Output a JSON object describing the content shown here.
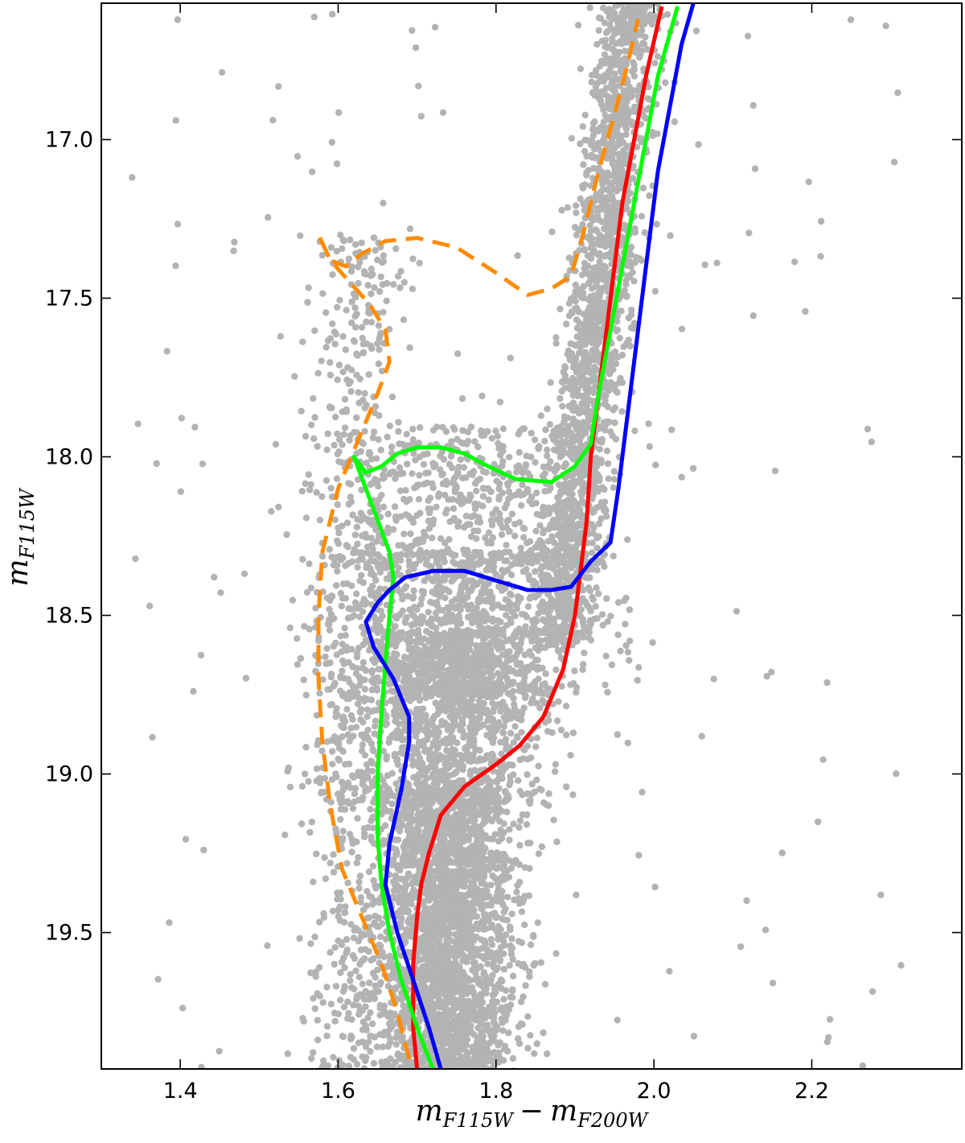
{
  "chart_data": {
    "type": "scatter",
    "xlabel": {
      "main": "m",
      "sub1": "F115W",
      "op": "−",
      "main2": "m",
      "sub2": "F200W"
    },
    "ylabel": {
      "main": "m",
      "sub": "F115W"
    },
    "xlim": [
      1.3,
      2.39
    ],
    "ylim": [
      19.93,
      16.57
    ],
    "y_inverted": true,
    "grid": false,
    "x_ticks": [
      {
        "value": 1.4,
        "label": "1.4"
      },
      {
        "value": 1.6,
        "label": "1.6"
      },
      {
        "value": 1.8,
        "label": "1.8"
      },
      {
        "value": 2.0,
        "label": "2.0"
      },
      {
        "value": 2.2,
        "label": "2.2"
      }
    ],
    "y_ticks": [
      {
        "value": 17.0,
        "label": "17.0"
      },
      {
        "value": 17.5,
        "label": "17.5"
      },
      {
        "value": 18.0,
        "label": "18.0"
      },
      {
        "value": 18.5,
        "label": "18.5"
      },
      {
        "value": 19.0,
        "label": "19.0"
      },
      {
        "value": 19.5,
        "label": "19.5"
      }
    ],
    "points_color": "#b3b3b3",
    "point_groups": [
      {
        "region": "lower-main-sequence",
        "count": 2600,
        "y_range": [
          19.05,
          19.95
        ],
        "color_center": 1.735,
        "color_sigma": 0.045
      },
      {
        "region": "turnoff",
        "count": 1300,
        "y_range": [
          18.55,
          19.1
        ],
        "color_center": 1.74,
        "color_sigma": 0.06
      },
      {
        "region": "subgiant-branch-lower",
        "count": 900,
        "y_range": [
          18.3,
          18.75
        ],
        "color_center": 1.76,
        "color_sigma": 0.08
      },
      {
        "region": "subgiant-branch-upper",
        "count": 500,
        "y_range": [
          17.9,
          18.35
        ],
        "color_center": 1.77,
        "color_sigma": 0.08
      },
      {
        "region": "red-giant-branch",
        "count": 2000,
        "y_range": [
          16.57,
          18.6
        ],
        "color_center": 1.92,
        "color_sigma": 0.02
      },
      {
        "region": "blue-wing",
        "count": 700,
        "y_range": [
          17.3,
          19.95
        ],
        "color_center": 1.62,
        "color_sigma": 0.03
      },
      {
        "region": "field-scatter",
        "count": 160,
        "y_range": [
          16.57,
          19.93
        ],
        "color_center": 1.85,
        "color_sigma": 0.3
      }
    ],
    "series": [
      {
        "color": "#ff8c00",
        "style": "dashed",
        "points": [
          [
            1.69,
            19.9
          ],
          [
            1.675,
            19.75
          ],
          [
            1.655,
            19.6
          ],
          [
            1.63,
            19.45
          ],
          [
            1.605,
            19.3
          ],
          [
            1.59,
            19.1
          ],
          [
            1.58,
            18.9
          ],
          [
            1.575,
            18.7
          ],
          [
            1.575,
            18.5
          ],
          [
            1.58,
            18.3
          ],
          [
            1.6,
            18.1
          ],
          [
            1.625,
            17.95
          ],
          [
            1.65,
            17.8
          ],
          [
            1.665,
            17.7
          ],
          [
            1.66,
            17.6
          ],
          [
            1.64,
            17.52
          ],
          [
            1.615,
            17.45
          ],
          [
            1.59,
            17.38
          ],
          [
            1.575,
            17.3
          ],
          [
            1.59,
            17.38
          ],
          [
            1.61,
            17.4
          ],
          [
            1.63,
            17.36
          ],
          [
            1.66,
            17.32
          ],
          [
            1.7,
            17.31
          ],
          [
            1.75,
            17.34
          ],
          [
            1.8,
            17.42
          ],
          [
            1.84,
            17.49
          ],
          [
            1.87,
            17.47
          ],
          [
            1.895,
            17.43
          ],
          [
            1.91,
            17.3
          ],
          [
            1.93,
            17.1
          ],
          [
            1.95,
            16.92
          ],
          [
            1.965,
            16.78
          ],
          [
            1.98,
            16.62
          ]
        ]
      },
      {
        "color": "#ff0000",
        "style": "solid",
        "points": [
          [
            1.7,
            19.93
          ],
          [
            1.695,
            19.8
          ],
          [
            1.695,
            19.6
          ],
          [
            1.7,
            19.45
          ],
          [
            1.705,
            19.35
          ],
          [
            1.715,
            19.25
          ],
          [
            1.73,
            19.13
          ],
          [
            1.76,
            19.04
          ],
          [
            1.8,
            18.97
          ],
          [
            1.83,
            18.91
          ],
          [
            1.86,
            18.82
          ],
          [
            1.885,
            18.67
          ],
          [
            1.9,
            18.5
          ],
          [
            1.91,
            18.3
          ],
          [
            1.915,
            18.2
          ],
          [
            1.92,
            18.0
          ],
          [
            1.93,
            17.8
          ],
          [
            1.94,
            17.6
          ],
          [
            1.95,
            17.4
          ],
          [
            1.96,
            17.2
          ],
          [
            1.975,
            17.0
          ],
          [
            1.99,
            16.8
          ],
          [
            2.01,
            16.58
          ]
        ]
      },
      {
        "color": "#00ff00",
        "style": "solid",
        "points": [
          [
            1.72,
            19.93
          ],
          [
            1.7,
            19.8
          ],
          [
            1.68,
            19.65
          ],
          [
            1.665,
            19.5
          ],
          [
            1.655,
            19.35
          ],
          [
            1.65,
            19.2
          ],
          [
            1.65,
            19.0
          ],
          [
            1.655,
            18.8
          ],
          [
            1.66,
            18.65
          ],
          [
            1.665,
            18.5
          ],
          [
            1.67,
            18.38
          ],
          [
            1.665,
            18.3
          ],
          [
            1.65,
            18.2
          ],
          [
            1.635,
            18.1
          ],
          [
            1.62,
            18.0
          ],
          [
            1.635,
            18.05
          ],
          [
            1.655,
            18.03
          ],
          [
            1.675,
            17.99
          ],
          [
            1.7,
            17.97
          ],
          [
            1.73,
            17.97
          ],
          [
            1.76,
            17.99
          ],
          [
            1.79,
            18.03
          ],
          [
            1.825,
            18.07
          ],
          [
            1.87,
            18.08
          ],
          [
            1.9,
            18.03
          ],
          [
            1.92,
            17.96
          ],
          [
            1.93,
            17.8
          ],
          [
            1.945,
            17.6
          ],
          [
            1.96,
            17.4
          ],
          [
            1.975,
            17.2
          ],
          [
            1.99,
            17.0
          ],
          [
            2.005,
            16.8
          ],
          [
            2.03,
            16.58
          ]
        ]
      },
      {
        "color": "#0000ff",
        "style": "solid",
        "points": [
          [
            1.73,
            19.93
          ],
          [
            1.715,
            19.8
          ],
          [
            1.695,
            19.65
          ],
          [
            1.675,
            19.5
          ],
          [
            1.66,
            19.35
          ],
          [
            1.665,
            19.22
          ],
          [
            1.68,
            19.05
          ],
          [
            1.69,
            18.9
          ],
          [
            1.69,
            18.82
          ],
          [
            1.67,
            18.7
          ],
          [
            1.645,
            18.6
          ],
          [
            1.635,
            18.52
          ],
          [
            1.65,
            18.46
          ],
          [
            1.665,
            18.42
          ],
          [
            1.685,
            18.38
          ],
          [
            1.72,
            18.36
          ],
          [
            1.76,
            18.36
          ],
          [
            1.8,
            18.39
          ],
          [
            1.84,
            18.42
          ],
          [
            1.87,
            18.42
          ],
          [
            1.895,
            18.41
          ],
          [
            1.92,
            18.33
          ],
          [
            1.945,
            18.27
          ],
          [
            1.955,
            18.1
          ],
          [
            1.965,
            17.9
          ],
          [
            1.975,
            17.7
          ],
          [
            1.985,
            17.5
          ],
          [
            1.995,
            17.3
          ],
          [
            2.005,
            17.1
          ],
          [
            2.02,
            16.9
          ],
          [
            2.035,
            16.7
          ],
          [
            2.05,
            16.57
          ]
        ]
      }
    ]
  }
}
